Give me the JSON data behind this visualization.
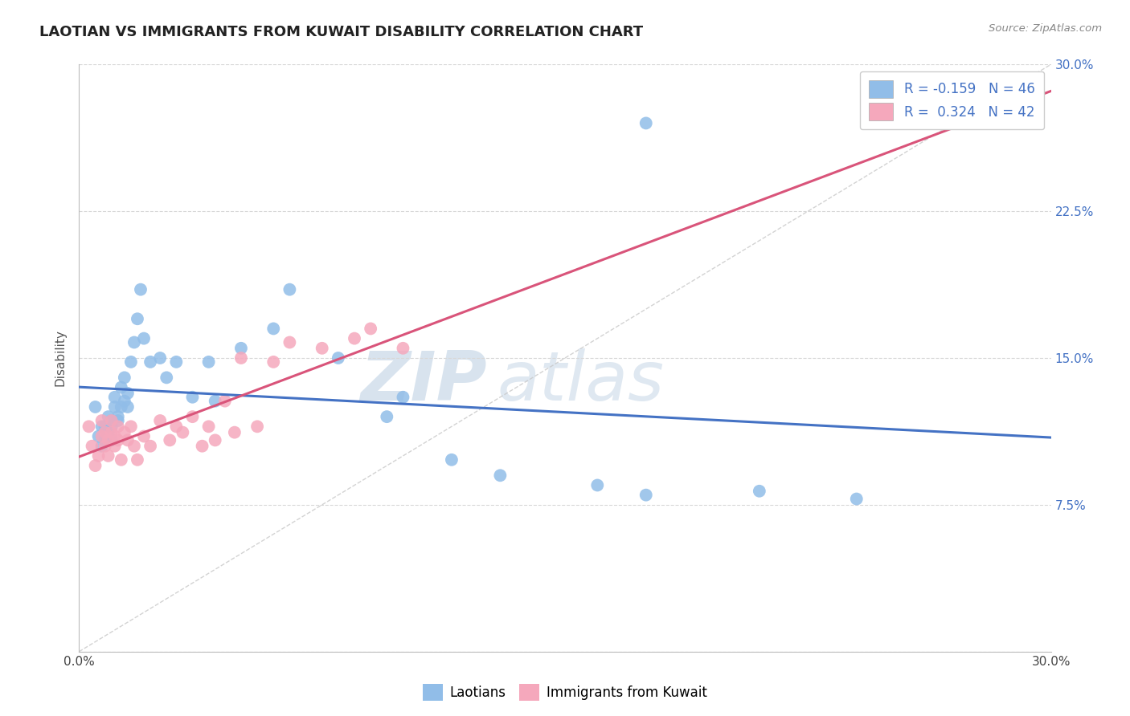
{
  "title": "LAOTIAN VS IMMIGRANTS FROM KUWAIT DISABILITY CORRELATION CHART",
  "source": "Source: ZipAtlas.com",
  "ylabel": "Disability",
  "legend_labels": [
    "Laotians",
    "Immigrants from Kuwait"
  ],
  "series1_color": "#91bde8",
  "series2_color": "#f5a8bc",
  "series1_line_color": "#4472c4",
  "series2_line_color": "#d9547a",
  "series1_R": -0.159,
  "series1_N": 46,
  "series2_R": 0.324,
  "series2_N": 42,
  "xmin": 0.0,
  "xmax": 0.3,
  "ymin": 0.0,
  "ymax": 0.3,
  "yticks": [
    0.0,
    0.075,
    0.15,
    0.225,
    0.3
  ],
  "ytick_labels": [
    "",
    "7.5%",
    "15.0%",
    "22.5%",
    "30.0%"
  ],
  "watermark_zip": "ZIP",
  "watermark_atlas": "atlas",
  "background_color": "#ffffff",
  "series1_x": [
    0.005,
    0.006,
    0.007,
    0.007,
    0.008,
    0.008,
    0.009,
    0.009,
    0.01,
    0.01,
    0.01,
    0.011,
    0.011,
    0.012,
    0.012,
    0.013,
    0.013,
    0.014,
    0.014,
    0.015,
    0.015,
    0.016,
    0.017,
    0.018,
    0.019,
    0.02,
    0.022,
    0.025,
    0.027,
    0.03,
    0.035,
    0.04,
    0.042,
    0.05,
    0.06,
    0.065,
    0.08,
    0.095,
    0.1,
    0.115,
    0.13,
    0.16,
    0.175,
    0.21,
    0.24,
    0.175
  ],
  "series1_y": [
    0.125,
    0.11,
    0.115,
    0.105,
    0.115,
    0.108,
    0.112,
    0.12,
    0.108,
    0.115,
    0.118,
    0.125,
    0.13,
    0.12,
    0.118,
    0.125,
    0.135,
    0.128,
    0.14,
    0.132,
    0.125,
    0.148,
    0.158,
    0.17,
    0.185,
    0.16,
    0.148,
    0.15,
    0.14,
    0.148,
    0.13,
    0.148,
    0.128,
    0.155,
    0.165,
    0.185,
    0.15,
    0.12,
    0.13,
    0.098,
    0.09,
    0.085,
    0.08,
    0.082,
    0.078,
    0.27
  ],
  "series2_x": [
    0.003,
    0.004,
    0.005,
    0.006,
    0.007,
    0.007,
    0.008,
    0.008,
    0.009,
    0.009,
    0.01,
    0.01,
    0.011,
    0.011,
    0.012,
    0.012,
    0.013,
    0.014,
    0.015,
    0.016,
    0.017,
    0.018,
    0.02,
    0.022,
    0.025,
    0.028,
    0.03,
    0.032,
    0.035,
    0.038,
    0.04,
    0.042,
    0.045,
    0.048,
    0.05,
    0.055,
    0.06,
    0.065,
    0.075,
    0.085,
    0.09,
    0.1
  ],
  "series2_y": [
    0.115,
    0.105,
    0.095,
    0.1,
    0.11,
    0.118,
    0.105,
    0.112,
    0.1,
    0.108,
    0.112,
    0.118,
    0.11,
    0.105,
    0.115,
    0.108,
    0.098,
    0.112,
    0.108,
    0.115,
    0.105,
    0.098,
    0.11,
    0.105,
    0.118,
    0.108,
    0.115,
    0.112,
    0.12,
    0.105,
    0.115,
    0.108,
    0.128,
    0.112,
    0.15,
    0.115,
    0.148,
    0.158,
    0.155,
    0.16,
    0.165,
    0.155
  ]
}
